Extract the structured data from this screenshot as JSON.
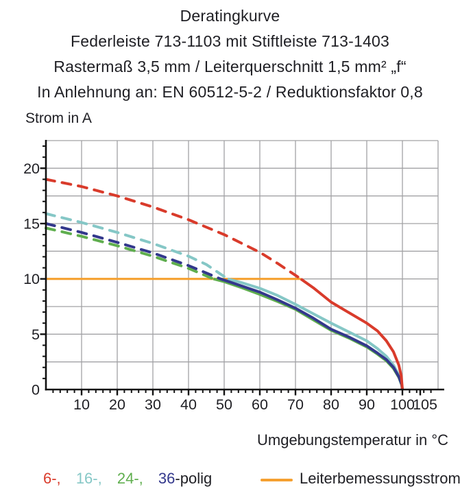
{
  "title": {
    "line1": "Deratingkurve",
    "line2": "Federleiste 713-1103 mit Stiftleiste 713-1403",
    "line3": "Rastermaß 3,5 mm / Leiterquerschnitt 1,5 mm² „f“",
    "line4": "In Anlehnung an: EN 60512-5-2 / Reduktionsfaktor 0,8"
  },
  "chart_data": {
    "type": "line",
    "title": "Deratingkurve",
    "xlabel": "Umgebungstemperatur in °C",
    "ylabel": "Strom in A",
    "xlim": [
      0,
      110
    ],
    "ylim": [
      0,
      22.5
    ],
    "grid": true,
    "x_grid_step": 10,
    "y_grid_step": 2.5,
    "x_minor_tick_step": 2,
    "y_minor_tick_step": 1,
    "x_tick_labels": [
      {
        "value": 10,
        "label": "10"
      },
      {
        "value": 20,
        "label": "20"
      },
      {
        "value": 30,
        "label": "30"
      },
      {
        "value": 40,
        "label": "40"
      },
      {
        "value": 50,
        "label": "50"
      },
      {
        "value": 60,
        "label": "60"
      },
      {
        "value": 70,
        "label": "70"
      },
      {
        "value": 80,
        "label": "80"
      },
      {
        "value": 90,
        "label": "90"
      },
      {
        "value": 100,
        "label": "100"
      },
      {
        "value": 105,
        "label": "105",
        "dx": 7
      }
    ],
    "y_tick_labels": [
      {
        "value": 0,
        "label": "0"
      },
      {
        "value": 5,
        "label": "5"
      },
      {
        "value": 10,
        "label": "10"
      },
      {
        "value": 15,
        "label": "15"
      },
      {
        "value": 20,
        "label": "20"
      }
    ],
    "colors": {
      "grid": "#a2a2a5",
      "axis": "#111111",
      "text": "#1f1f24"
    },
    "series": [
      {
        "name": "16-polig",
        "color": "#85c7c6",
        "dashed": [
          [
            0,
            15.9
          ],
          [
            10,
            15.1
          ],
          [
            20,
            14.2
          ],
          [
            30,
            13.2
          ],
          [
            40,
            12.05
          ],
          [
            45,
            11.3
          ],
          [
            51,
            10.0
          ]
        ],
        "solid": [
          [
            51,
            10.0
          ],
          [
            55,
            9.65
          ],
          [
            60,
            9.15
          ],
          [
            65,
            8.5
          ],
          [
            70,
            7.7
          ],
          [
            75,
            6.85
          ],
          [
            80,
            6.0
          ],
          [
            85,
            5.2
          ],
          [
            90,
            4.4
          ],
          [
            93,
            3.7
          ],
          [
            95.5,
            3.0
          ],
          [
            97.5,
            2.2
          ],
          [
            99,
            1.3
          ],
          [
            99.8,
            0.5
          ],
          [
            100,
            0
          ]
        ]
      },
      {
        "name": "24-polig",
        "color": "#5fae4e",
        "dashed": [
          [
            0,
            14.6
          ],
          [
            10,
            13.85
          ],
          [
            20,
            13.0
          ],
          [
            30,
            12.05
          ],
          [
            40,
            10.95
          ],
          [
            47,
            10.0
          ]
        ],
        "solid": [
          [
            47,
            10.0
          ],
          [
            50,
            9.75
          ],
          [
            55,
            9.2
          ],
          [
            60,
            8.6
          ],
          [
            65,
            7.95
          ],
          [
            70,
            7.25
          ],
          [
            75,
            6.3
          ],
          [
            80,
            5.35
          ],
          [
            85,
            4.65
          ],
          [
            90,
            3.85
          ],
          [
            93,
            3.2
          ],
          [
            95.5,
            2.6
          ],
          [
            97.5,
            1.9
          ],
          [
            99,
            1.1
          ],
          [
            99.8,
            0.4
          ],
          [
            100,
            0
          ]
        ]
      },
      {
        "name": "36-polig",
        "color": "#33388c",
        "dashed": [
          [
            0,
            15.0
          ],
          [
            10,
            14.2
          ],
          [
            20,
            13.3
          ],
          [
            30,
            12.35
          ],
          [
            40,
            11.2
          ],
          [
            49,
            10.0
          ]
        ],
        "solid": [
          [
            49,
            10.0
          ],
          [
            55,
            9.35
          ],
          [
            60,
            8.8
          ],
          [
            65,
            8.1
          ],
          [
            70,
            7.35
          ],
          [
            75,
            6.45
          ],
          [
            80,
            5.45
          ],
          [
            85,
            4.75
          ],
          [
            90,
            3.95
          ],
          [
            93,
            3.3
          ],
          [
            95.5,
            2.7
          ],
          [
            97.5,
            2.0
          ],
          [
            99,
            1.15
          ],
          [
            99.8,
            0.45
          ],
          [
            100,
            0
          ]
        ]
      },
      {
        "name": "6-polig",
        "color": "#d93b2b",
        "dashed": [
          [
            0,
            19.0
          ],
          [
            10,
            18.35
          ],
          [
            20,
            17.5
          ],
          [
            30,
            16.5
          ],
          [
            40,
            15.35
          ],
          [
            50,
            14.0
          ],
          [
            60,
            12.4
          ],
          [
            65,
            11.4
          ],
          [
            71.5,
            10.0
          ]
        ],
        "solid": [
          [
            71.5,
            10.0
          ],
          [
            75,
            9.2
          ],
          [
            80,
            7.9
          ],
          [
            85,
            6.95
          ],
          [
            90,
            6.0
          ],
          [
            93,
            5.3
          ],
          [
            95.5,
            4.4
          ],
          [
            97.5,
            3.4
          ],
          [
            99,
            2.2
          ],
          [
            99.7,
            1.2
          ],
          [
            100,
            0
          ]
        ]
      }
    ],
    "rated_current": {
      "name": "Leiterbemessungsstrom",
      "color": "#f5a030",
      "value": 10,
      "x_start": 0,
      "x_end": 71.5
    }
  },
  "legend": {
    "pole_items": [
      {
        "label": "6-,",
        "color": "#d93b2b"
      },
      {
        "label": "16-,",
        "color": "#85c7c6"
      },
      {
        "label": "24-,",
        "color": "#5fae4e"
      },
      {
        "label": "36",
        "color": "#33388c"
      },
      {
        "label": "-polig",
        "color": "#1f1f24"
      }
    ],
    "rated": {
      "label": "Leiterbemessungsstrom",
      "color": "#f5a030"
    }
  }
}
